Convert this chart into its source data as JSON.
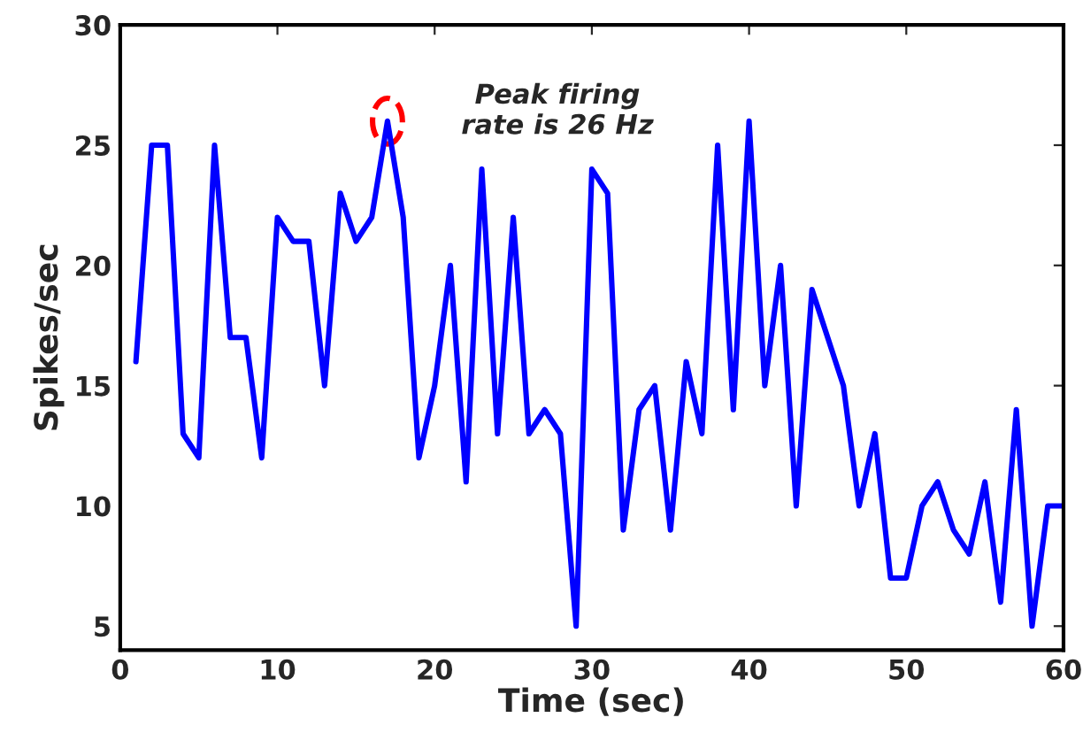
{
  "chart_data": {
    "type": "line",
    "xlabel": "Time (sec)",
    "ylabel": "Spikes/sec",
    "x": [
      1,
      2,
      3,
      4,
      5,
      6,
      7,
      8,
      9,
      10,
      11,
      12,
      13,
      14,
      15,
      16,
      17,
      18,
      19,
      20,
      21,
      22,
      23,
      24,
      25,
      26,
      27,
      28,
      29,
      30,
      31,
      32,
      33,
      34,
      35,
      36,
      37,
      38,
      39,
      40,
      41,
      42,
      43,
      44,
      45,
      46,
      47,
      48,
      49,
      50,
      51,
      52,
      53,
      54,
      55,
      56,
      57,
      58,
      59,
      60
    ],
    "series": [
      {
        "color": "#0000ff",
        "values": [
          16,
          25,
          25,
          13,
          12,
          25,
          17,
          17,
          12,
          22,
          21,
          21,
          15,
          23,
          21,
          22,
          26,
          22,
          12,
          15,
          20,
          11,
          24,
          13,
          22,
          13,
          14,
          13,
          5,
          24,
          23,
          9,
          14,
          15,
          9,
          16,
          13,
          25,
          14,
          26,
          15,
          20,
          10,
          19,
          17,
          15,
          10,
          13,
          7,
          7,
          10,
          11,
          9,
          8,
          11,
          6,
          14,
          5,
          10,
          10
        ]
      }
    ],
    "xlim": [
      0,
      60
    ],
    "ylim": [
      4,
      30
    ],
    "xticks": [
      0,
      10,
      20,
      30,
      40,
      50,
      60
    ],
    "yticks": [
      5,
      10,
      15,
      20,
      25,
      30
    ],
    "annotations": [
      {
        "text": "Peak firing\nrate is 26 Hz",
        "x": 17,
        "y": 26
      }
    ],
    "grid": false,
    "legend": false,
    "marker": "none",
    "line_style": "solid"
  }
}
